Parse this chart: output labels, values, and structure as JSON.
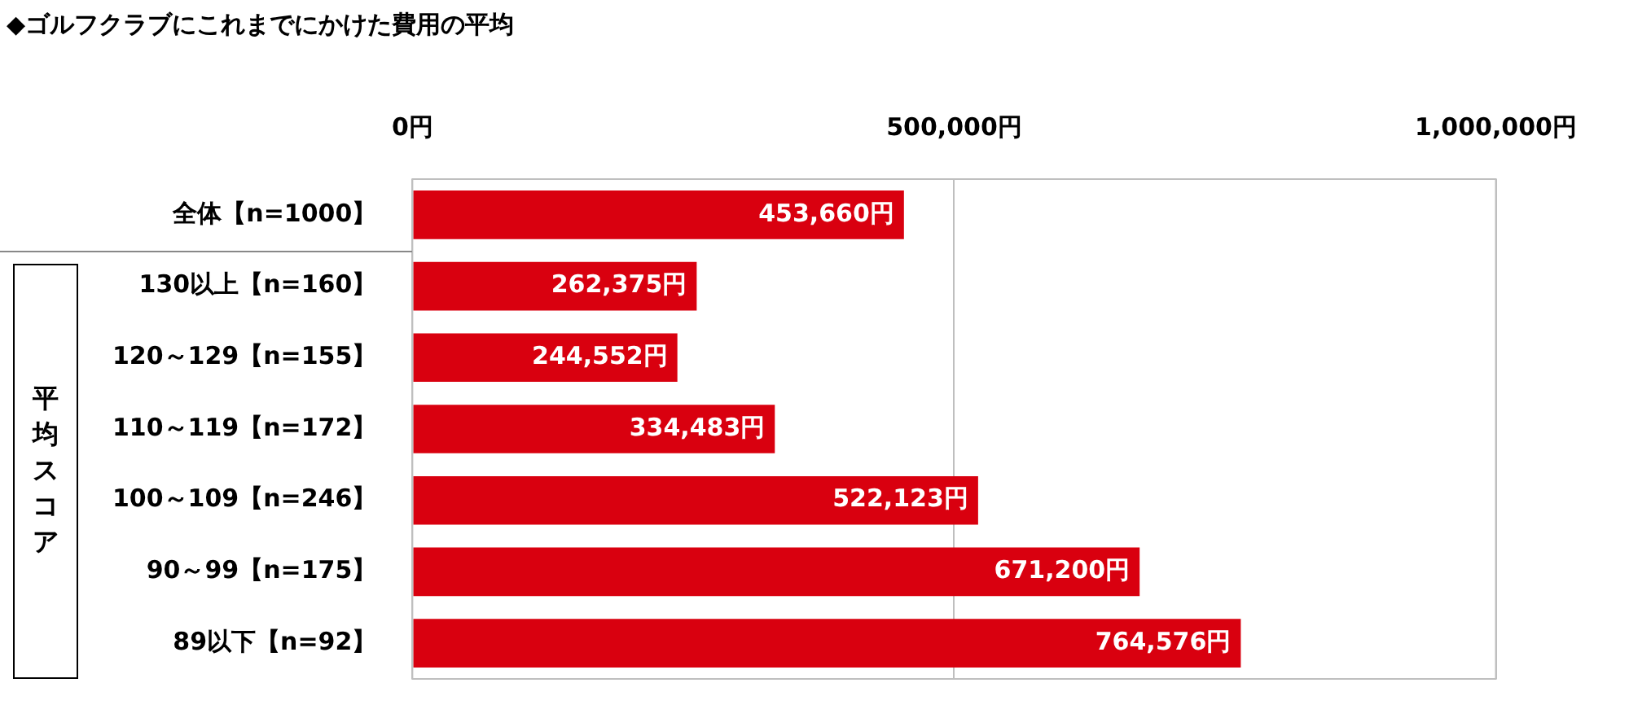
{
  "chart_data": {
    "type": "bar",
    "orientation": "horizontal",
    "title": "◆ゴルフクラブにこれまでにかけた費用の平均",
    "categories": [
      "全体【n=1000】",
      "130以上【n=160】",
      "120～129【n=155】",
      "110～119【n=172】",
      "100～109【n=246】",
      "90～99【n=175】",
      "89以下【n=92】"
    ],
    "values": [
      453660,
      262375,
      244552,
      334483,
      522123,
      671200,
      764576
    ],
    "value_labels": [
      "453,660円",
      "262,375円",
      "244,552円",
      "334,483円",
      "522,123円",
      "671,200円",
      "764,576円"
    ],
    "color": "#d9000f",
    "xlim": [
      0,
      1000000
    ],
    "xticks": [
      {
        "value": 0,
        "label": "0円"
      },
      {
        "value": 500000,
        "label": "500,000円"
      },
      {
        "value": 1000000,
        "label": "1,000,000円"
      }
    ],
    "grid": "x",
    "legend": false,
    "annotations": [
      "平均スコア"
    ]
  }
}
